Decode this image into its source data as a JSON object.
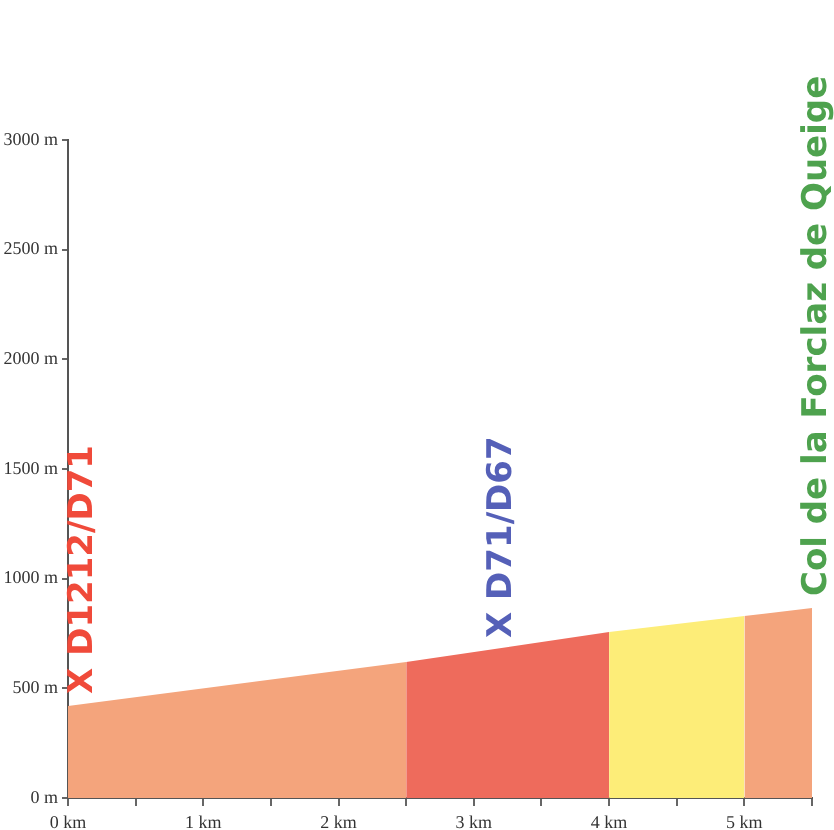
{
  "chart_data": {
    "type": "area",
    "series": [
      {
        "color": "#f4a47c",
        "x": [
          0,
          2.5
        ],
        "values": [
          420,
          620
        ]
      },
      {
        "color": "#ee6b5c",
        "x": [
          2.5,
          4
        ],
        "values": [
          620,
          757
        ]
      },
      {
        "color": "#fded78",
        "x": [
          4,
          5
        ],
        "values": [
          757,
          830
        ]
      },
      {
        "color": "#f4a47c",
        "x": [
          5,
          5.5
        ],
        "values": [
          830,
          866
        ]
      }
    ],
    "xlim": [
      0,
      5.5
    ],
    "xticks": [
      {
        "value": 0,
        "label": "0 km"
      },
      {
        "value": 0.5,
        "label": null
      },
      {
        "value": 1,
        "label": "1 km"
      },
      {
        "value": 1.5,
        "label": null
      },
      {
        "value": 2,
        "label": "2 km"
      },
      {
        "value": 2.5,
        "label": null
      },
      {
        "value": 3,
        "label": "3 km"
      },
      {
        "value": 3.5,
        "label": null
      },
      {
        "value": 4,
        "label": "4 km"
      },
      {
        "value": 4.5,
        "label": null
      },
      {
        "value": 5,
        "label": "5 km"
      },
      {
        "value": 5.5,
        "label": null
      }
    ],
    "ylim": [
      0,
      3000
    ],
    "yticks": [
      {
        "value": 0,
        "label": "0 m"
      },
      {
        "value": 500,
        "label": "500 m"
      },
      {
        "value": 1000,
        "label": "1000 m"
      },
      {
        "value": 1500,
        "label": "1500 m"
      },
      {
        "value": 2000,
        "label": "2000 m"
      },
      {
        "value": 2500,
        "label": "2500 m"
      },
      {
        "value": 3000,
        "label": "3000 m"
      }
    ],
    "grid": false,
    "legend": false,
    "annotations": [
      {
        "text": "X D1212/D71",
        "x": 0,
        "y": 420
      },
      {
        "text": "X D71/D67",
        "x": 3.1,
        "y": 675
      },
      {
        "text": "Col de la Forclaz de Queige",
        "x": 5.5,
        "y": 866
      }
    ]
  }
}
